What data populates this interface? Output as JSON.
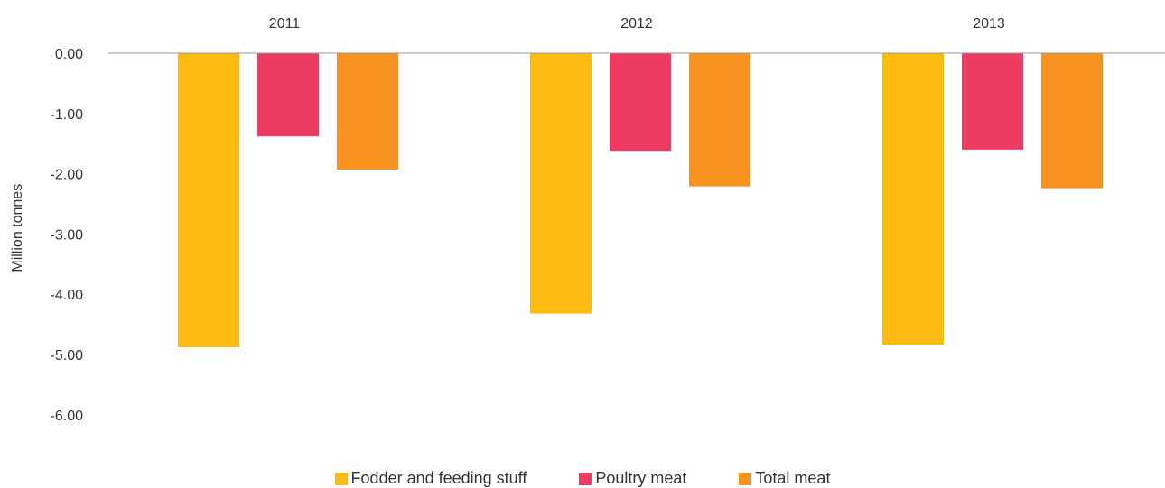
{
  "chart_data": {
    "type": "bar",
    "categories": [
      "2011",
      "2012",
      "2013"
    ],
    "category_axis_position": "top",
    "ylabel": "Million tonnes",
    "ylim": [
      -6,
      0
    ],
    "yticks": [
      0,
      -1,
      -2,
      -3,
      -4,
      -5,
      -6
    ],
    "ytick_labels": [
      "0.00",
      "-1.00",
      "-2.00",
      "-3.00",
      "-4.00",
      "-5.00",
      "-6.00"
    ],
    "grid": false,
    "legend_position": "bottom",
    "series": [
      {
        "name": "Fodder and feeding stuff",
        "color": "#FBBB10",
        "values": [
          -4.88,
          -4.32,
          -4.84
        ]
      },
      {
        "name": "Poultry meat",
        "color": "#EE3B63",
        "values": [
          -1.38,
          -1.62,
          -1.6
        ]
      },
      {
        "name": "Total meat",
        "color": "#F79120",
        "values": [
          -1.93,
          -2.21,
          -2.24
        ]
      }
    ]
  }
}
